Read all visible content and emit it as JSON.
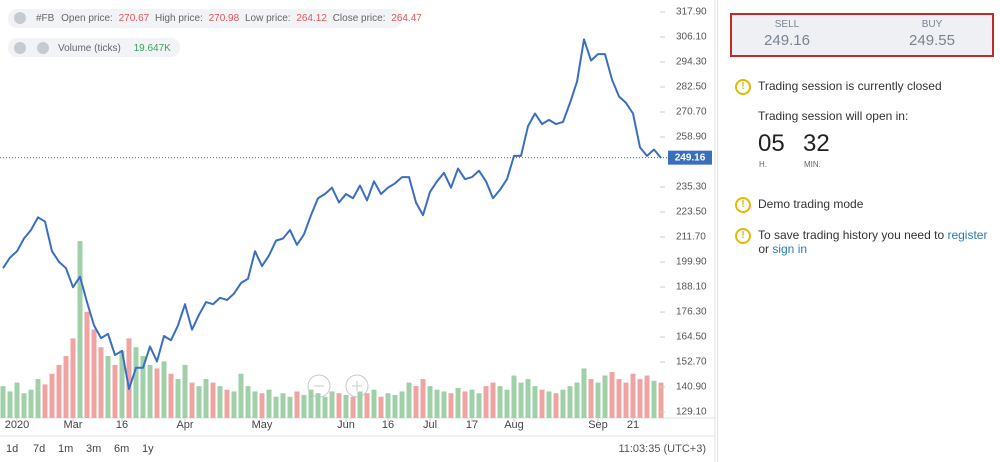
{
  "chart_data": {
    "type": "line",
    "header": {
      "symbol": "#FB",
      "open_label": "Open price:",
      "open": "270.67",
      "high_label": "High price:",
      "high": "270.98",
      "low_label": "Low price:",
      "low": "264.12",
      "close_label": "Close price:",
      "close": "264.47",
      "volume_label": "Volume (ticks)",
      "volume_last": "19.647K"
    },
    "categories": [
      null,
      null,
      "2020",
      null,
      null,
      null,
      null,
      null,
      null,
      null,
      "Mar",
      null,
      null,
      null,
      null,
      null,
      null,
      "16",
      null,
      null,
      null,
      null,
      null,
      null,
      null,
      null,
      "Apr",
      null,
      null,
      null,
      null,
      null,
      null,
      null,
      null,
      null,
      null,
      "May",
      null,
      null,
      null,
      null,
      null,
      null,
      null,
      null,
      null,
      null,
      null,
      "Jun",
      null,
      null,
      null,
      null,
      null,
      "16",
      null,
      null,
      null,
      null,
      null,
      "Jul",
      null,
      null,
      null,
      null,
      null,
      "17",
      null,
      null,
      null,
      null,
      null,
      "Aug",
      null,
      null,
      null,
      null,
      null,
      null,
      null,
      null,
      null,
      null,
      null,
      "Sep",
      null,
      null,
      null,
      null,
      "21",
      null,
      null,
      null,
      null
    ],
    "series": [
      {
        "name": "#FB",
        "color": "#3a6fc0",
        "values": [
          197,
          202,
          205,
          211,
          215,
          221,
          219,
          205,
          200,
          197,
          188,
          193,
          181,
          170,
          164,
          166,
          156,
          158,
          140,
          150,
          150,
          160,
          153,
          165,
          163,
          170,
          180,
          168,
          175,
          181,
          180,
          183,
          182,
          185,
          190,
          192,
          205,
          198,
          203,
          210,
          211,
          215,
          208,
          213,
          222,
          230,
          232,
          235,
          228,
          232,
          230,
          236,
          229,
          238,
          232,
          235,
          237,
          240,
          240,
          228,
          222,
          233,
          238,
          242,
          235,
          244,
          239,
          240,
          243,
          238,
          230,
          234,
          239,
          250,
          250,
          264,
          270,
          265,
          267,
          265,
          266,
          275,
          285,
          305,
          295,
          298,
          298,
          286,
          278,
          275,
          270,
          254,
          250,
          253,
          249
        ]
      },
      {
        "name": "Volume (ticks)",
        "values": [
          18,
          15,
          20,
          14,
          16,
          22,
          19,
          25,
          30,
          35,
          45,
          100,
          60,
          50,
          40,
          35,
          30,
          38,
          45,
          40,
          35,
          30,
          28,
          32,
          25,
          22,
          30,
          20,
          18,
          22,
          20,
          18,
          16,
          15,
          25,
          18,
          15,
          14,
          16,
          12,
          14,
          12,
          15,
          13,
          16,
          14,
          12,
          15,
          14,
          13,
          12,
          15,
          14,
          16,
          12,
          14,
          13,
          15,
          20,
          18,
          22,
          18,
          16,
          15,
          14,
          17,
          15,
          16,
          14,
          18,
          20,
          18,
          16,
          24,
          20,
          22,
          18,
          16,
          15,
          14,
          16,
          18,
          20,
          28,
          22,
          20,
          24,
          26,
          22,
          20,
          25,
          22,
          24,
          21,
          20
        ]
      }
    ],
    "up_color": "#9fd0a8",
    "down_color": "#f0a3a3",
    "volume_lim": [
      0,
      140
    ],
    "ylim": [
      126.3,
      321.2
    ],
    "yticks": [
      {
        "value": 129.1,
        "label": "129.10"
      },
      {
        "value": 140.9,
        "label": "140.90"
      },
      {
        "value": 152.7,
        "label": "152.70"
      },
      {
        "value": 164.5,
        "label": "164.50"
      },
      {
        "value": 176.3,
        "label": "176.30"
      },
      {
        "value": 188.1,
        "label": "188.10"
      },
      {
        "value": 199.9,
        "label": "199.90"
      },
      {
        "value": 211.7,
        "label": "211.70"
      },
      {
        "value": 223.5,
        "label": "223.50"
      },
      {
        "value": 235.3,
        "label": "235.30"
      },
      {
        "value": 258.9,
        "label": "258.90"
      },
      {
        "value": 270.7,
        "label": "270.70"
      },
      {
        "value": 282.5,
        "label": "282.50"
      },
      {
        "value": 294.3,
        "label": "294.30"
      },
      {
        "value": 306.1,
        "label": "306.10"
      },
      {
        "value": 317.9,
        "label": "317.90"
      }
    ],
    "current_price": 249.16,
    "periods": [
      "1d",
      "7d",
      "1m",
      "3m",
      "6m",
      "1y"
    ],
    "time": "11:03:35 (UTC+3)"
  },
  "panel": {
    "sell_label": "SELL",
    "sell": "249.16",
    "buy_label": "BUY",
    "buy": "249.55",
    "closed": "Trading session is currently closed",
    "opens_in": "Trading session will open in:",
    "hours": "05",
    "hours_unit": "H.",
    "minutes": "32",
    "minutes_unit": "MIN.",
    "demo": "Demo trading mode",
    "save_text": "To save trading history you need to ",
    "register": "register",
    "or": " or ",
    "sign_in": "sign in"
  }
}
